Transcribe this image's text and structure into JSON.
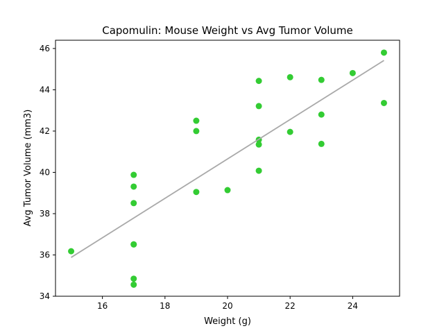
{
  "chart_data": {
    "type": "scatter",
    "title": "Capomulin: Mouse Weight vs Avg Tumor Volume",
    "xlabel": "Weight (g)",
    "ylabel": "Avg Tumor Volume (mm3)",
    "xlim": [
      14.5,
      25.5
    ],
    "ylim": [
      34,
      46.4
    ],
    "xticks": [
      16,
      18,
      20,
      22,
      24
    ],
    "yticks": [
      34,
      36,
      38,
      40,
      42,
      44,
      46
    ],
    "grid": false,
    "legend": "none",
    "marker_color": "#33cc33",
    "line_color": "#a9a9a9",
    "points": [
      {
        "x": 15,
        "y": 36.18
      },
      {
        "x": 17,
        "y": 39.88
      },
      {
        "x": 17,
        "y": 39.31
      },
      {
        "x": 17,
        "y": 38.51
      },
      {
        "x": 17,
        "y": 36.51
      },
      {
        "x": 17,
        "y": 36.51
      },
      {
        "x": 17,
        "y": 34.85
      },
      {
        "x": 17,
        "y": 34.56
      },
      {
        "x": 19,
        "y": 42.5
      },
      {
        "x": 19,
        "y": 42.0
      },
      {
        "x": 19,
        "y": 39.05
      },
      {
        "x": 20,
        "y": 39.14
      },
      {
        "x": 21,
        "y": 44.43
      },
      {
        "x": 21,
        "y": 43.21
      },
      {
        "x": 21,
        "y": 41.58
      },
      {
        "x": 21,
        "y": 41.35
      },
      {
        "x": 21,
        "y": 40.08
      },
      {
        "x": 22,
        "y": 44.61
      },
      {
        "x": 22,
        "y": 41.96
      },
      {
        "x": 23,
        "y": 44.48
      },
      {
        "x": 23,
        "y": 42.8
      },
      {
        "x": 23,
        "y": 41.38
      },
      {
        "x": 24,
        "y": 44.81
      },
      {
        "x": 25,
        "y": 45.8
      },
      {
        "x": 25,
        "y": 43.36
      }
    ],
    "regression_line": {
      "x": [
        15,
        25
      ],
      "y": [
        35.88,
        45.42
      ]
    }
  }
}
